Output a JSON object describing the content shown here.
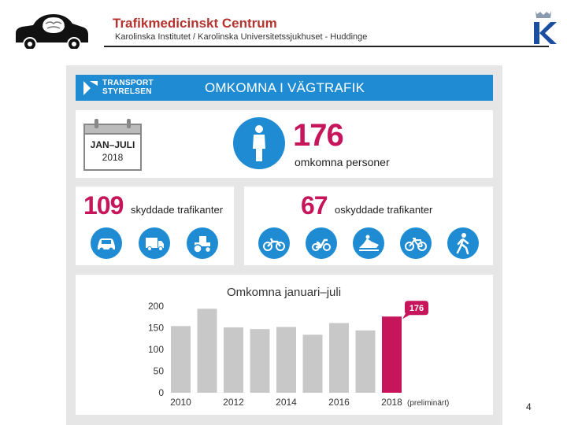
{
  "header": {
    "title": "Trafikmedicinskt Centrum",
    "subtitle": "Karolinska Institutet / Karolinska Universitetssjukhuset - Huddinge"
  },
  "infographic": {
    "brand_line1": "TRANSPORT",
    "brand_line2": "STYRELSEN",
    "banner_title": "OMKOMNA I VÄGTRAFIK",
    "calendar_line1": "JAN–JULI",
    "calendar_line2": "2018",
    "total_number": "176",
    "total_label": "omkomna personer",
    "protected_number": "109",
    "protected_label": "skyddade trafikanter",
    "unprotected_number": "67",
    "unprotected_label": "oskyddade trafikanter",
    "protected_icons": [
      "car-icon",
      "truck-icon",
      "tractor-icon"
    ],
    "unprotected_icons": [
      "motorcycle-icon",
      "moped-icon",
      "snowmobile-icon",
      "bicycle-icon",
      "pedestrian-icon"
    ],
    "colors": {
      "blue": "#1e8bd3",
      "magenta": "#c6155b",
      "bar_gray": "#c8c8c8",
      "panel_bg": "#e6e6e6"
    }
  },
  "chart_data": {
    "type": "bar",
    "title": "Omkomna januari–juli",
    "categories": [
      "2010",
      "2011",
      "2012",
      "2013",
      "2014",
      "2015",
      "2016",
      "2017",
      "2018"
    ],
    "values": [
      154,
      194,
      151,
      147,
      152,
      134,
      161,
      144,
      176
    ],
    "x_tick_labels": [
      "2010",
      "2012",
      "2014",
      "2016",
      "2018"
    ],
    "x_tick_note": "(preliminärt)",
    "y_ticks": [
      0,
      50,
      100,
      150,
      200
    ],
    "ylim": [
      0,
      200
    ],
    "highlight_label": "176",
    "xlabel": "",
    "ylabel": ""
  },
  "page_number": "4"
}
